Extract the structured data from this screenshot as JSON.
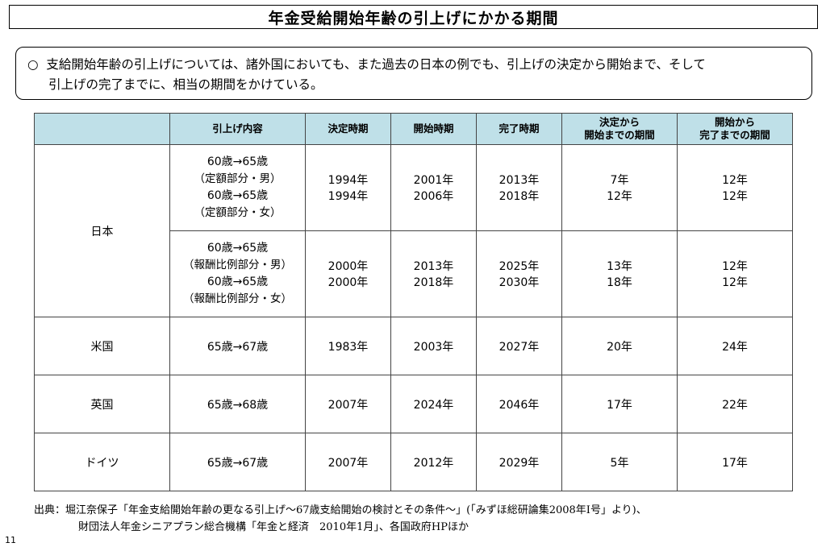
{
  "title": "年金受給開始年齢の引上げにかかる期間",
  "summary": {
    "bullet": "○",
    "line1": "支給開始年齢の引上げについては、諸外国においても、また過去の日本の例でも、引上げの決定から開始まで、そして",
    "line2": "引上げの完了までに、相当の期間をかけている。"
  },
  "table": {
    "headers": {
      "country": "",
      "content": "引上げ内容",
      "decided": "決定時期",
      "start": "開始時期",
      "complete": "完了時期",
      "d2s_1": "決定から",
      "d2s_2": "開始までの期間",
      "s2c_1": "開始から",
      "s2c_2": "完了までの期間"
    },
    "japan": {
      "country": "日本",
      "r1": {
        "content": "60歳→65歳",
        "sub": "（定額部分・男）",
        "decided": "1994年",
        "start": "2001年",
        "complete": "2013年",
        "d2s": "7年",
        "s2c": "12年"
      },
      "r2": {
        "content": "60歳→65歳",
        "sub": "（定額部分・女）",
        "decided": "1994年",
        "start": "2006年",
        "complete": "2018年",
        "d2s": "12年",
        "s2c": "12年"
      },
      "r3": {
        "content": "60歳→65歳",
        "sub": "（報酬比例部分・男）",
        "decided": "2000年",
        "start": "2013年",
        "complete": "2025年",
        "d2s": "13年",
        "s2c": "12年"
      },
      "r4": {
        "content": "60歳→65歳",
        "sub": "（報酬比例部分・女）",
        "decided": "2000年",
        "start": "2018年",
        "complete": "2030年",
        "d2s": "18年",
        "s2c": "12年"
      }
    },
    "us": {
      "country": "米国",
      "content": "65歳→67歳",
      "decided": "1983年",
      "start": "2003年",
      "complete": "2027年",
      "d2s": "20年",
      "s2c": "24年"
    },
    "uk": {
      "country": "英国",
      "content": "65歳→68歳",
      "decided": "2007年",
      "start": "2024年",
      "complete": "2046年",
      "d2s": "17年",
      "s2c": "22年"
    },
    "de": {
      "country": "ドイツ",
      "content": "65歳→67歳",
      "decided": "2007年",
      "start": "2012年",
      "complete": "2029年",
      "d2s": "5年",
      "s2c": "17年"
    }
  },
  "footer": {
    "line1": "出典：堀江奈保子「年金支給開始年齢の更なる引上げ～67歳支給開始の検討とその条件～」(「みずほ総研論集2008年Ⅰ号」より)、",
    "line2": "財団法人年金シニアプラン総合機構「年金と経済　2010年1月」、各国政府HPほか"
  },
  "page_number": "11",
  "colors": {
    "header_bg": "#bfe0e8",
    "border": "#444444"
  }
}
